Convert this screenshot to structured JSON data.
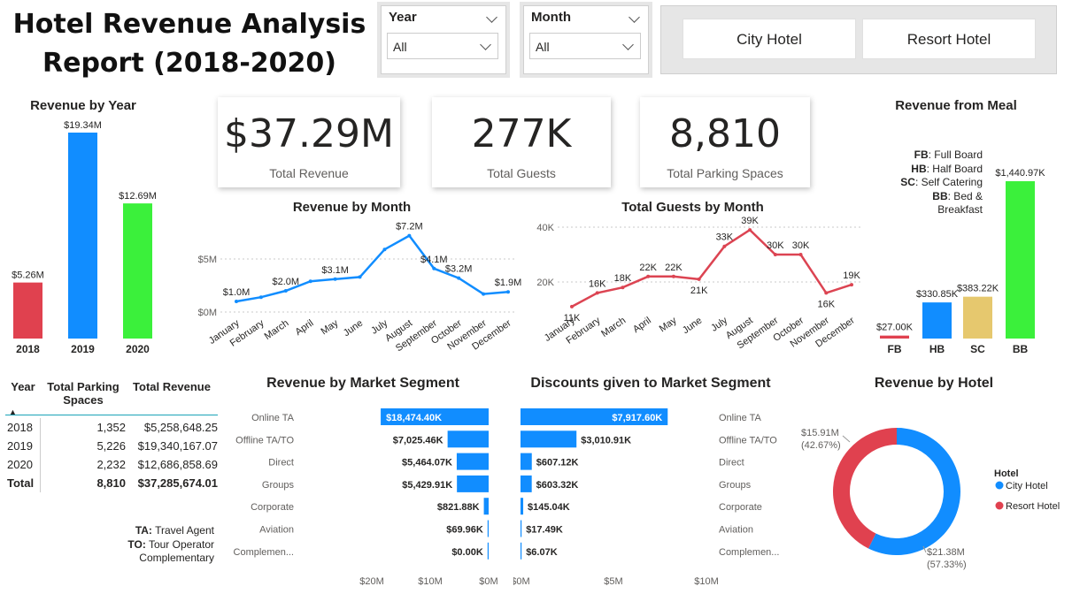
{
  "title": {
    "line1": "Hotel Revenue Analysis",
    "line2": "Report (2018-2020)"
  },
  "filters": {
    "year": {
      "label": "Year",
      "value": "All"
    },
    "month": {
      "label": "Month",
      "value": "All"
    }
  },
  "hotel_buttons": [
    "City Hotel",
    "Resort Hotel"
  ],
  "kpis": [
    {
      "value": "$37.29M",
      "label": "Total Revenue"
    },
    {
      "value": "277K",
      "label": "Total Guests"
    },
    {
      "value": "8,810",
      "label": "Total Parking Spaces"
    }
  ],
  "meal_legend": [
    {
      "code": "FB",
      "text": ": Full Board"
    },
    {
      "code": "HB",
      "text": ": Half Board"
    },
    {
      "code": "SC",
      "text": ": Self Catering"
    },
    {
      "code": "BB",
      "text": ": Bed & Breakfast"
    }
  ],
  "year_table": {
    "headers": [
      "Year",
      "Total Parking Spaces",
      "Total Revenue"
    ],
    "rows": [
      [
        "2018",
        "1,352",
        "$5,258,648.25"
      ],
      [
        "2019",
        "5,226",
        "$19,340,167.07"
      ],
      [
        "2020",
        "2,232",
        "$12,686,858.69"
      ]
    ],
    "total": [
      "Total",
      "8,810",
      "$37,285,674.01"
    ]
  },
  "segment_note": {
    "ta_code": "TA:",
    "ta_text": "Travel Agent",
    "to_code": "TO:",
    "to_text": "Tour Operator",
    "comp_text": "Complementary"
  },
  "colors": {
    "blue": "#118DFF",
    "red": "#E0414F",
    "green": "#3BF03B",
    "sand": "#E6C86E",
    "line_red": "#DC4452"
  },
  "chart_data": [
    {
      "id": "revenue_by_year",
      "type": "bar",
      "title": "Revenue by Year",
      "categories": [
        "2018",
        "2019",
        "2020"
      ],
      "values": [
        5.26,
        19.34,
        12.69
      ],
      "labels": [
        "$5.26M",
        "$19.34M",
        "$12.69M"
      ],
      "colors": [
        "#E0414F",
        "#118DFF",
        "#3BF03B"
      ],
      "ylim": [
        0,
        19.34
      ]
    },
    {
      "id": "revenue_by_month",
      "type": "line",
      "title": "Revenue by Month",
      "categories": [
        "January",
        "February",
        "March",
        "April",
        "May",
        "June",
        "July",
        "August",
        "September",
        "October",
        "November",
        "December"
      ],
      "values": [
        1.0,
        1.4,
        2.0,
        2.9,
        3.1,
        3.3,
        5.9,
        7.2,
        4.1,
        3.2,
        1.7,
        1.9
      ],
      "point_labels": [
        "$1.0M",
        "",
        "$2.0M",
        "",
        "$3.1M",
        "",
        "",
        "$7.2M",
        "$4.1M",
        "$3.2M",
        "",
        "$1.9M"
      ],
      "yticks": [
        0,
        5
      ],
      "ytick_labels": [
        "$0M",
        "$5M"
      ],
      "ylim": [
        0,
        8
      ],
      "color": "#118DFF"
    },
    {
      "id": "guests_by_month",
      "type": "line",
      "title": "Total Guests by Month",
      "categories": [
        "January",
        "February",
        "March",
        "April",
        "May",
        "June",
        "July",
        "August",
        "September",
        "October",
        "November",
        "December"
      ],
      "values": [
        11,
        16,
        18,
        22,
        22,
        21,
        33,
        39,
        30,
        30,
        16,
        19
      ],
      "point_labels": [
        "11K",
        "16K",
        "18K",
        "22K",
        "22K",
        "21K",
        "33K",
        "39K",
        "30K",
        "30K",
        "16K",
        "19K"
      ],
      "yticks": [
        20,
        40
      ],
      "ytick_labels": [
        "20K",
        "40K"
      ],
      "ylim": [
        10,
        40
      ],
      "color": "#DC4452"
    },
    {
      "id": "revenue_from_meal",
      "type": "bar",
      "title": "Revenue from Meal",
      "categories": [
        "FB",
        "HB",
        "SC",
        "BB"
      ],
      "values": [
        27.0,
        330.85,
        383.22,
        1440.97
      ],
      "labels": [
        "$27.00K",
        "$330.85K",
        "$383.22K",
        "$1,440.97K"
      ],
      "colors": [
        "#E0414F",
        "#118DFF",
        "#E6C86E",
        "#3BF03B"
      ],
      "ylim": [
        0,
        1440.97
      ]
    },
    {
      "id": "revenue_by_market_segment",
      "type": "bar",
      "title": "Revenue by Market Segment",
      "categories": [
        "Online TA",
        "Offline TA/TO",
        "Direct",
        "Groups",
        "Corporate",
        "Aviation",
        "Complemen..."
      ],
      "values": [
        18474.4,
        7025.46,
        5464.07,
        5429.91,
        821.88,
        69.96,
        0.0
      ],
      "labels": [
        "$18,474.40K",
        "$7,025.46K",
        "$5,464.07K",
        "$5,429.91K",
        "$821.88K",
        "$69.96K",
        "$0.00K"
      ],
      "xticks": [
        20000,
        10000,
        0
      ],
      "xtick_labels": [
        "$20M",
        "$10M",
        "$0M"
      ],
      "xlim": [
        0,
        20000
      ],
      "color": "#118DFF"
    },
    {
      "id": "discounts_by_market_segment",
      "type": "bar",
      "title": "Discounts given to Market Segment",
      "categories": [
        "Online TA",
        "Offline TA/TO",
        "Direct",
        "Groups",
        "Corporate",
        "Aviation",
        "Complemen..."
      ],
      "values": [
        7917.6,
        3010.91,
        607.12,
        603.32,
        145.04,
        17.49,
        6.07
      ],
      "labels": [
        "$7,917.60K",
        "$3,010.91K",
        "$607.12K",
        "$603.32K",
        "$145.04K",
        "$17.49K",
        "$6.07K"
      ],
      "xticks": [
        0,
        5000,
        10000
      ],
      "xtick_labels": [
        "$0M",
        "$5M",
        "$10M"
      ],
      "xlim": [
        0,
        10000
      ],
      "color": "#118DFF"
    },
    {
      "id": "revenue_by_hotel",
      "type": "pie",
      "title": "Revenue by Hotel",
      "legend_title": "Hotel",
      "slices": [
        {
          "name": "City Hotel",
          "value": 21.38,
          "label": "$21.38M",
          "pct": "(57.33%)",
          "color": "#118DFF"
        },
        {
          "name": "Resort Hotel",
          "value": 15.91,
          "label": "$15.91M",
          "pct": "(42.67%)",
          "color": "#E0414F"
        }
      ]
    }
  ]
}
